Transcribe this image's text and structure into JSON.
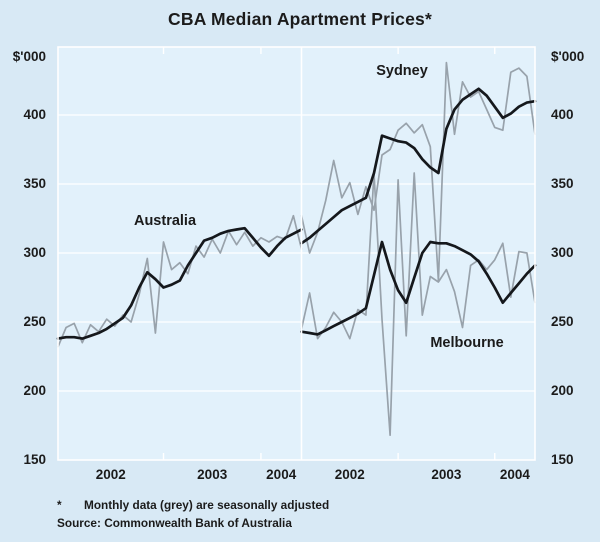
{
  "title": "CBA Median Apartment Prices*",
  "y_axis_unit": "$'000",
  "footnote": {
    "marker": "*",
    "text": "Monthly data (grey) are seasonally adjusted"
  },
  "source": "Source: Commonwealth Bank of Australia",
  "chart_data": {
    "type": "line",
    "title": "CBA Median Apartment Prices*",
    "unit": "$'000",
    "ylim": [
      150,
      449
    ],
    "yticks": [
      400,
      350,
      300,
      250,
      200,
      150
    ],
    "grid": true,
    "legend_position": "in-plot-annotations",
    "note": "Two-panel monthly time series; grey = monthly data, black = seasonally adjusted",
    "colors": {
      "seasonally_adjusted": "#15181c",
      "monthly": "#98a2ab"
    },
    "panels": [
      {
        "annotation": "Australia",
        "x_start": "2001-12",
        "x_end": "2004-06",
        "xticks": [
          "2002",
          "2003",
          "2004"
        ],
        "series": [
          {
            "name": "Australia (monthly)",
            "style": "monthly",
            "values": [
              232,
              246,
              249,
              235,
              248,
              243,
              252,
              247,
              255,
              250,
              270,
              296,
              242,
              308,
              288,
              293,
              285,
              305,
              297,
              310,
              300,
              316,
              306,
              315,
              305,
              311,
              308,
              312,
              310,
              327,
              303
            ]
          },
          {
            "name": "Australia (seasonally adjusted)",
            "style": "seasonally_adjusted",
            "values": [
              238,
              239,
              239,
              238,
              240,
              242,
              245,
              249,
              253,
              262,
              275,
              286,
              281,
              275,
              277,
              280,
              291,
              300,
              309,
              311,
              314,
              316,
              317,
              318,
              311,
              304,
              298,
              305,
              311,
              314,
              317
            ]
          }
        ]
      },
      {
        "annotations": [
          "Sydney",
          "Melbourne"
        ],
        "x_start": "2002-01",
        "x_end": "2004-06",
        "xticks": [
          "2002",
          "2003",
          "2004"
        ],
        "series": [
          {
            "name": "Sydney (monthly)",
            "style": "monthly",
            "values": [
              327,
              300,
              315,
              338,
              367,
              340,
              351,
              328,
              348,
              331,
              371,
              375,
              389,
              394,
              387,
              393,
              377,
              280,
              438,
              386,
              424,
              413,
              417,
              404,
              391,
              389,
              431,
              434,
              428,
              386
            ]
          },
          {
            "name": "Melbourne (monthly)",
            "style": "monthly",
            "values": [
              245,
              271,
              238,
              246,
              257,
              250,
              238,
              259,
              255,
              358,
              252,
              168,
              353,
              240,
              358,
              255,
              283,
              279,
              288,
              272,
              246,
              291,
              295,
              288,
              295,
              307,
              268,
              301,
              300,
              264
            ]
          },
          {
            "name": "Sydney (seasonally adjusted)",
            "style": "seasonally_adjusted",
            "values": [
              307,
              311,
              316,
              321,
              326,
              331,
              334,
              337,
              340,
              358,
              385,
              383,
              381,
              380,
              376,
              368,
              362,
              358,
              390,
              404,
              411,
              415,
              419,
              414,
              406,
              398,
              401,
              406,
              409,
              410
            ]
          },
          {
            "name": "Melbourne (seasonally adjusted)",
            "style": "seasonally_adjusted",
            "values": [
              243,
              242,
              241,
              244,
              247,
              250,
              253,
              256,
              260,
              284,
              308,
              288,
              273,
              264,
              282,
              300,
              308,
              307,
              307,
              305,
              302,
              299,
              294,
              285,
              275,
              264,
              271,
              278,
              285,
              291
            ]
          }
        ]
      }
    ]
  }
}
